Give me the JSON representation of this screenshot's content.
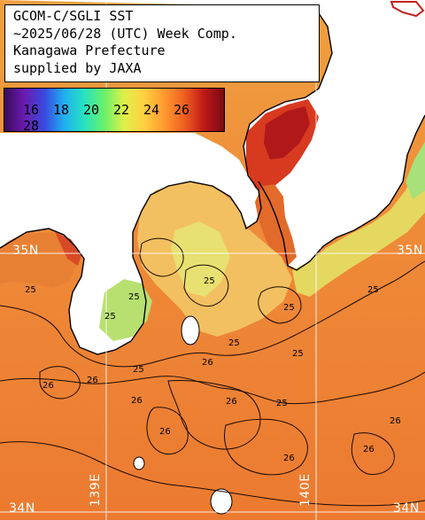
{
  "title": {
    "line1": "GCOM-C/SGLI SST",
    "line2": "~2025/06/28 (UTC) Week Comp.",
    "line3": "Kanagawa Prefecture",
    "line4": "supplied by JAXA"
  },
  "legend": {
    "ticks": [
      "16",
      "18",
      "20",
      "22",
      "24",
      "26",
      "28"
    ],
    "gradient_colors": [
      "#3a0a5a",
      "#6a1bb0",
      "#3a49e0",
      "#1fb0f0",
      "#27e3c0",
      "#6af06a",
      "#dff04a",
      "#ffd040",
      "#ff9a30",
      "#f06020",
      "#c01818",
      "#7a0a14"
    ]
  },
  "grid_labels": {
    "lat_35n_left": "35N",
    "lat_35n_right": "35N",
    "lat_34n_left": "34N",
    "lat_34n_right": "34N",
    "lon_139e": "139E",
    "lon_140e": "140E"
  },
  "contour_labels": [
    "25",
    "25",
    "25",
    "25",
    "25",
    "25",
    "25",
    "26",
    "26",
    "26",
    "26",
    "26",
    "26",
    "26",
    "25",
    "25",
    "26",
    "25",
    "26"
  ]
}
